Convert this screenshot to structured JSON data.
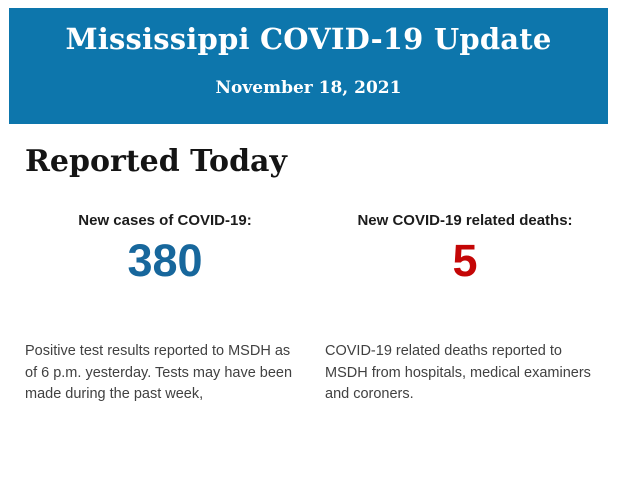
{
  "header": {
    "title": "Mississippi COVID-19 Update",
    "date": "November 18, 2021",
    "background_color": "#0d76ac",
    "text_color": "#ffffff"
  },
  "main": {
    "heading": "Reported Today",
    "stats": [
      {
        "label": "New cases of COVID-19:",
        "value": "380",
        "value_color": "#17679c",
        "description": "Positive test results reported to MSDH as of 6 p.m. yesterday. Tests may have been made during the past week,"
      },
      {
        "label": "New COVID-19 related deaths:",
        "value": "5",
        "value_color": "#c40606",
        "description": "COVID-19 related deaths reported to MSDH from hospitals, medical examiners and coroners."
      }
    ]
  }
}
